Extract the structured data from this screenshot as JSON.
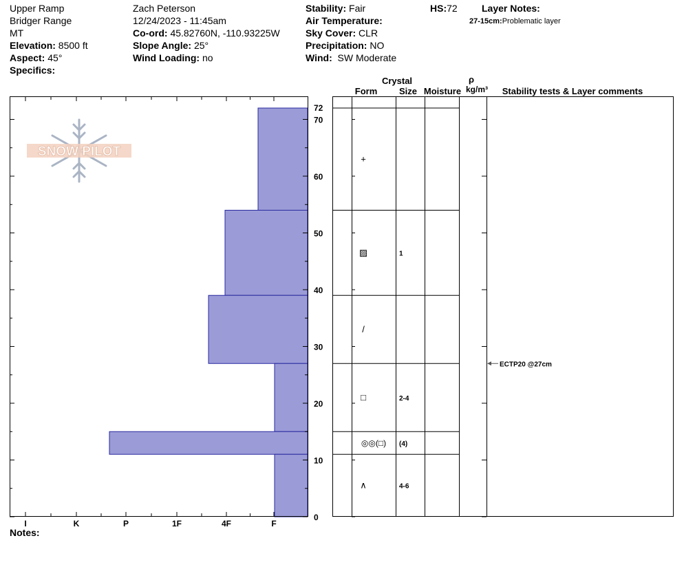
{
  "header": {
    "location": "Upper Ramp",
    "range": "Bridger Range",
    "state": "MT",
    "elevation_label": "Elevation:",
    "elevation": "8500 ft",
    "aspect_label": "Aspect:",
    "aspect": "45°",
    "specifics_label": "Specifics:",
    "observer": "Zach Peterson",
    "datetime": "12/24/2023 - 11:45am",
    "coord_label": "Co-ord:",
    "coord": "45.82760N, -110.93225W",
    "slope_label": "Slope Angle:",
    "slope": "25°",
    "wind_loading_label": "Wind Loading:",
    "wind_loading": "no",
    "stability_label": "Stability:",
    "stability": "Fair",
    "air_temp_label": "Air Temperature:",
    "sky_label": "Sky Cover:",
    "sky": "CLR",
    "precip_label": "Precipitation:",
    "precip": "NO",
    "wind_label": "Wind:",
    "wind": "SW Moderate",
    "hs_label": "HS:",
    "hs": "72",
    "layer_notes_label": "Layer Notes:",
    "layer_note_depth": "27-15cm:",
    "layer_note_text": "Problematic layer"
  },
  "logo_text": "SNOW PILOT",
  "notes_label": "Notes:",
  "columns": {
    "crystal": "Crystal",
    "form": "Form",
    "size": "Size",
    "moisture": "Moisture",
    "rho": "ρ",
    "density_unit": "kg/m³",
    "stability": "Stability tests & Layer comments"
  },
  "chart_data": {
    "type": "bar",
    "orientation": "horizontal-step",
    "hardness_categories": [
      "I",
      "K",
      "P",
      "1F",
      "4F",
      "F"
    ],
    "y_ticks": [
      "0",
      "10",
      "20",
      "30",
      "40",
      "50",
      "60",
      "70",
      "72"
    ],
    "ylim": [
      0,
      72
    ],
    "layers": [
      {
        "top": 72,
        "bottom": 54,
        "hardness": "1F-",
        "hardness_value": 0.95,
        "form": "+",
        "size": ""
      },
      {
        "top": 54,
        "bottom": 39,
        "hardness": "4F+",
        "hardness_value": 1.45,
        "form": "▨",
        "size": "1"
      },
      {
        "top": 39,
        "bottom": 27,
        "hardness": "P-",
        "hardness_value": 1.75,
        "form": "/",
        "size": ""
      },
      {
        "top": 27,
        "bottom": 15,
        "hardness": "F-",
        "hardness_value": 0.6,
        "form": "□",
        "size": "2-4"
      },
      {
        "top": 15,
        "bottom": 11,
        "hardness": "P+",
        "hardness_value": 3.6,
        "form": "◎◎(□)",
        "size": "(4)"
      },
      {
        "top": 11,
        "bottom": 0,
        "hardness": "F-",
        "hardness_value": 0.6,
        "form": "∧",
        "size": "4-6"
      }
    ],
    "tests": [
      {
        "depth": 27,
        "label": "ECTP20 @27cm"
      }
    ],
    "bar_color": "#9b9bd7"
  }
}
